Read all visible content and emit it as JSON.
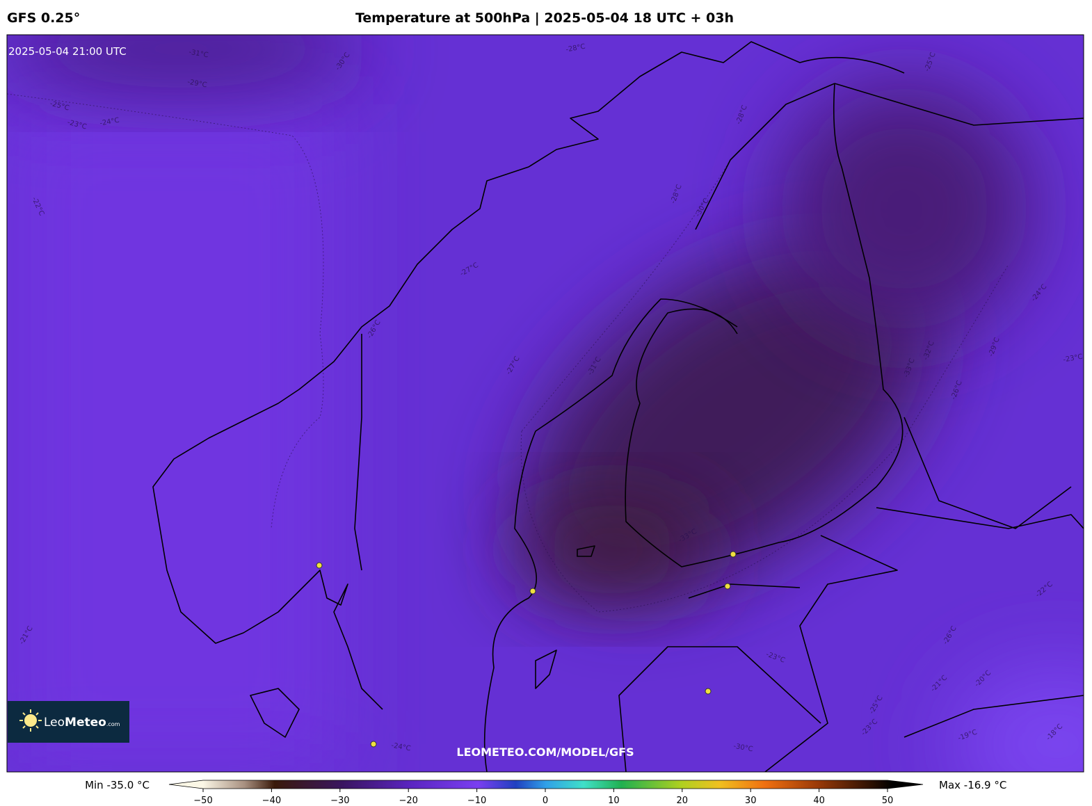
{
  "header": {
    "model": "GFS 0.25°",
    "title": "Temperature at 500hPa | 2025-05-04 18 UTC + 03h"
  },
  "map": {
    "valid_time": "2025-05-04 21:00 UTC",
    "watermark": "LEOMETEO.COM/MODEL/GFS",
    "logo": {
      "name": "Leo",
      "name_bold": "Meteo",
      "suffix": ".com"
    },
    "contour_labels": [
      "-31°C",
      "-30°C",
      "-29°C",
      "-28°C",
      "-25°C",
      "-23°C",
      "-24°C",
      "-22°C",
      "-28°C",
      "-30°C",
      "-27°C",
      "-26°C",
      "-27°C",
      "-31°C",
      "-33°C",
      "-32°C",
      "-33°C",
      "-29°C",
      "-24°C",
      "-23°C",
      "-26°C",
      "-22°C",
      "-21°C",
      "-26°C",
      "-20°C",
      "-25°C",
      "-23°C",
      "-19°C",
      "-18°C",
      "-21°C",
      "-24°C",
      "-23°C",
      "-30°C",
      "-28°C",
      "-25°C"
    ]
  },
  "colorbar": {
    "min_label": "Min -35.0 °C",
    "max_label": "Max -16.9 °C",
    "range": [
      -50,
      50
    ],
    "ticks": [
      {
        "value": -50,
        "label": "−50"
      },
      {
        "value": -40,
        "label": "−40"
      },
      {
        "value": -30,
        "label": "−30"
      },
      {
        "value": -20,
        "label": "−20"
      },
      {
        "value": -10,
        "label": "−10"
      },
      0,
      10,
      20,
      30,
      40,
      50
    ]
  }
}
